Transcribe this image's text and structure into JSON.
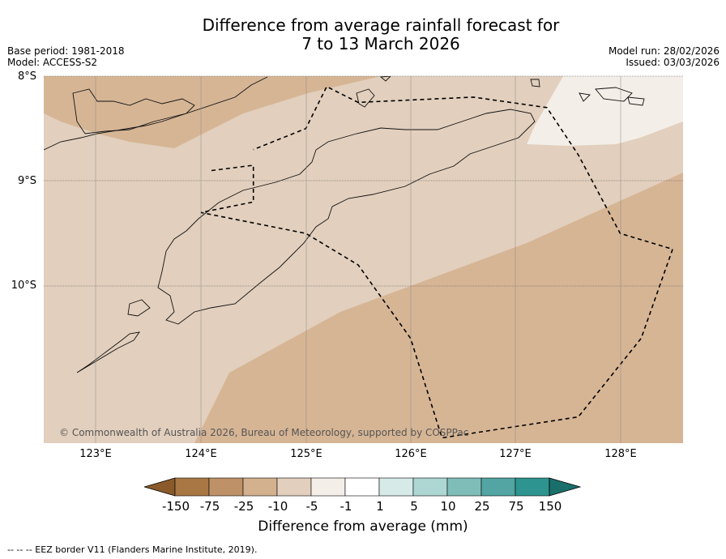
{
  "title": {
    "line1": "Difference from average rainfall forecast for",
    "line2": "7 to 13 March 2026"
  },
  "meta": {
    "base_period": "Base period: 1981-2018",
    "model": "Model: ACCESS-S2",
    "model_run": "Model run: 28/02/2026",
    "issued": "Issued: 03/03/2026"
  },
  "latitude_labels": [
    "8°S",
    "9°S",
    "10°S"
  ],
  "longitude_labels": [
    "123°E",
    "124°E",
    "125°E",
    "126°E",
    "127°E",
    "128°E"
  ],
  "credit": "© Commonwealth of Australia 2026, Bureau of Meteorology, supported by COSPPac",
  "legend": {
    "labels": [
      "-150",
      "-75",
      "-25",
      "-10",
      "-5",
      "-1",
      "1",
      "5",
      "10",
      "25",
      "75",
      "150"
    ],
    "colors": [
      "#8a5a2b",
      "#a87743",
      "#bf9168",
      "#d3b08e",
      "#e2cfbd",
      "#f3eee7",
      "#ffffff",
      "#d6ebe8",
      "#aed7d3",
      "#7fbdb9",
      "#52a5a3",
      "#2e948f",
      "#1a6f6b"
    ],
    "title": "Difference from average (mm)"
  },
  "footnote": "-- -- -- EEZ border V11 (Flanders Marine Institute, 2019).",
  "map": {
    "lon_range": [
      122.5,
      128.6
    ],
    "lat_range": [
      -11.5,
      -8.0
    ],
    "zones": [
      "-10",
      "-5",
      "-10"
    ],
    "eez_border": [
      [
        124.1,
        -8.9
      ],
      [
        124.5,
        -8.85
      ],
      [
        124.5,
        -9.2
      ],
      [
        124.0,
        -9.3
      ],
      [
        125.0,
        -9.5
      ],
      [
        125.5,
        -9.8
      ],
      [
        126.0,
        -10.5
      ],
      [
        126.3,
        -11.45
      ],
      [
        127.6,
        -11.25
      ],
      [
        128.2,
        -10.5
      ],
      [
        128.5,
        -9.65
      ],
      [
        128.0,
        -9.5
      ],
      [
        127.6,
        -8.75
      ],
      [
        127.3,
        -8.3
      ],
      [
        126.6,
        -8.2
      ],
      [
        125.5,
        -8.25
      ],
      [
        125.2,
        -8.1
      ],
      [
        125.0,
        -8.5
      ],
      [
        124.5,
        -8.7
      ]
    ]
  }
}
